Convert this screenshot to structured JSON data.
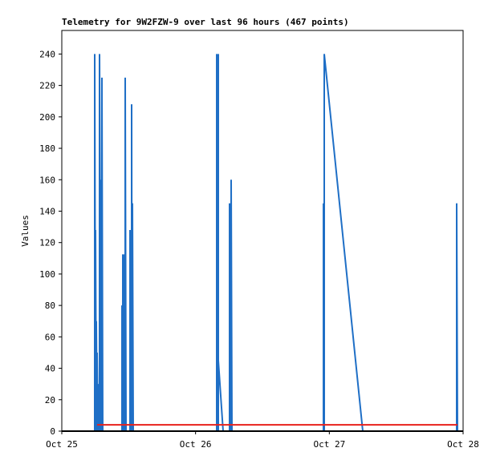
{
  "chart_data": {
    "type": "line",
    "title": "Telemetry for 9W2FZW-9 over last 96 hours (467 points)",
    "y_label": "Values",
    "xlim": [
      0,
      3
    ],
    "xticks": [
      {
        "value": 0,
        "label": "Oct 25"
      },
      {
        "value": 1,
        "label": "Oct 26"
      },
      {
        "value": 2,
        "label": "Oct 27"
      },
      {
        "value": 3,
        "label": "Oct 28"
      }
    ],
    "ylim": [
      0,
      255
    ],
    "yticks": [
      0,
      20,
      40,
      60,
      80,
      100,
      120,
      140,
      160,
      180,
      200,
      220,
      240
    ],
    "series": [
      {
        "color": "#1f6fc6",
        "x": [
          0.246,
          0.246,
          0.252,
          0.252,
          0.258,
          0.258,
          0.264,
          0.264,
          0.27,
          0.27,
          0.282,
          0.282,
          0.294,
          0.294,
          0.3,
          0.3,
          0.306,
          0.45,
          0.45,
          0.456,
          0.456,
          0.468,
          0.468,
          0.474,
          0.474,
          0.48,
          0.51,
          0.51,
          0.516,
          0.522,
          0.522,
          0.525,
          0.528,
          0.528,
          0.534,
          1.158,
          1.158,
          1.164,
          1.17,
          1.17,
          1.17,
          1.206,
          1.254,
          1.254,
          1.26,
          1.266,
          1.266,
          1.272,
          1.956,
          1.956,
          1.962,
          1.962,
          2.25,
          2.952,
          2.952,
          2.958
        ],
        "values": [
          0,
          240,
          0,
          128,
          0,
          70,
          0,
          50,
          0,
          30,
          0,
          240,
          0,
          160,
          0,
          225,
          0,
          0,
          80,
          0,
          112,
          112,
          0,
          0,
          225,
          0,
          0,
          128,
          0,
          0,
          208,
          0,
          0,
          145,
          0,
          0,
          240,
          0,
          0,
          240,
          45,
          0,
          0,
          145,
          0,
          0,
          160,
          0,
          0,
          145,
          0,
          240,
          0,
          0,
          145,
          0
        ]
      },
      {
        "color": "#e8211b",
        "x": [
          0.264,
          2.958
        ],
        "values": [
          4,
          4
        ]
      }
    ]
  }
}
